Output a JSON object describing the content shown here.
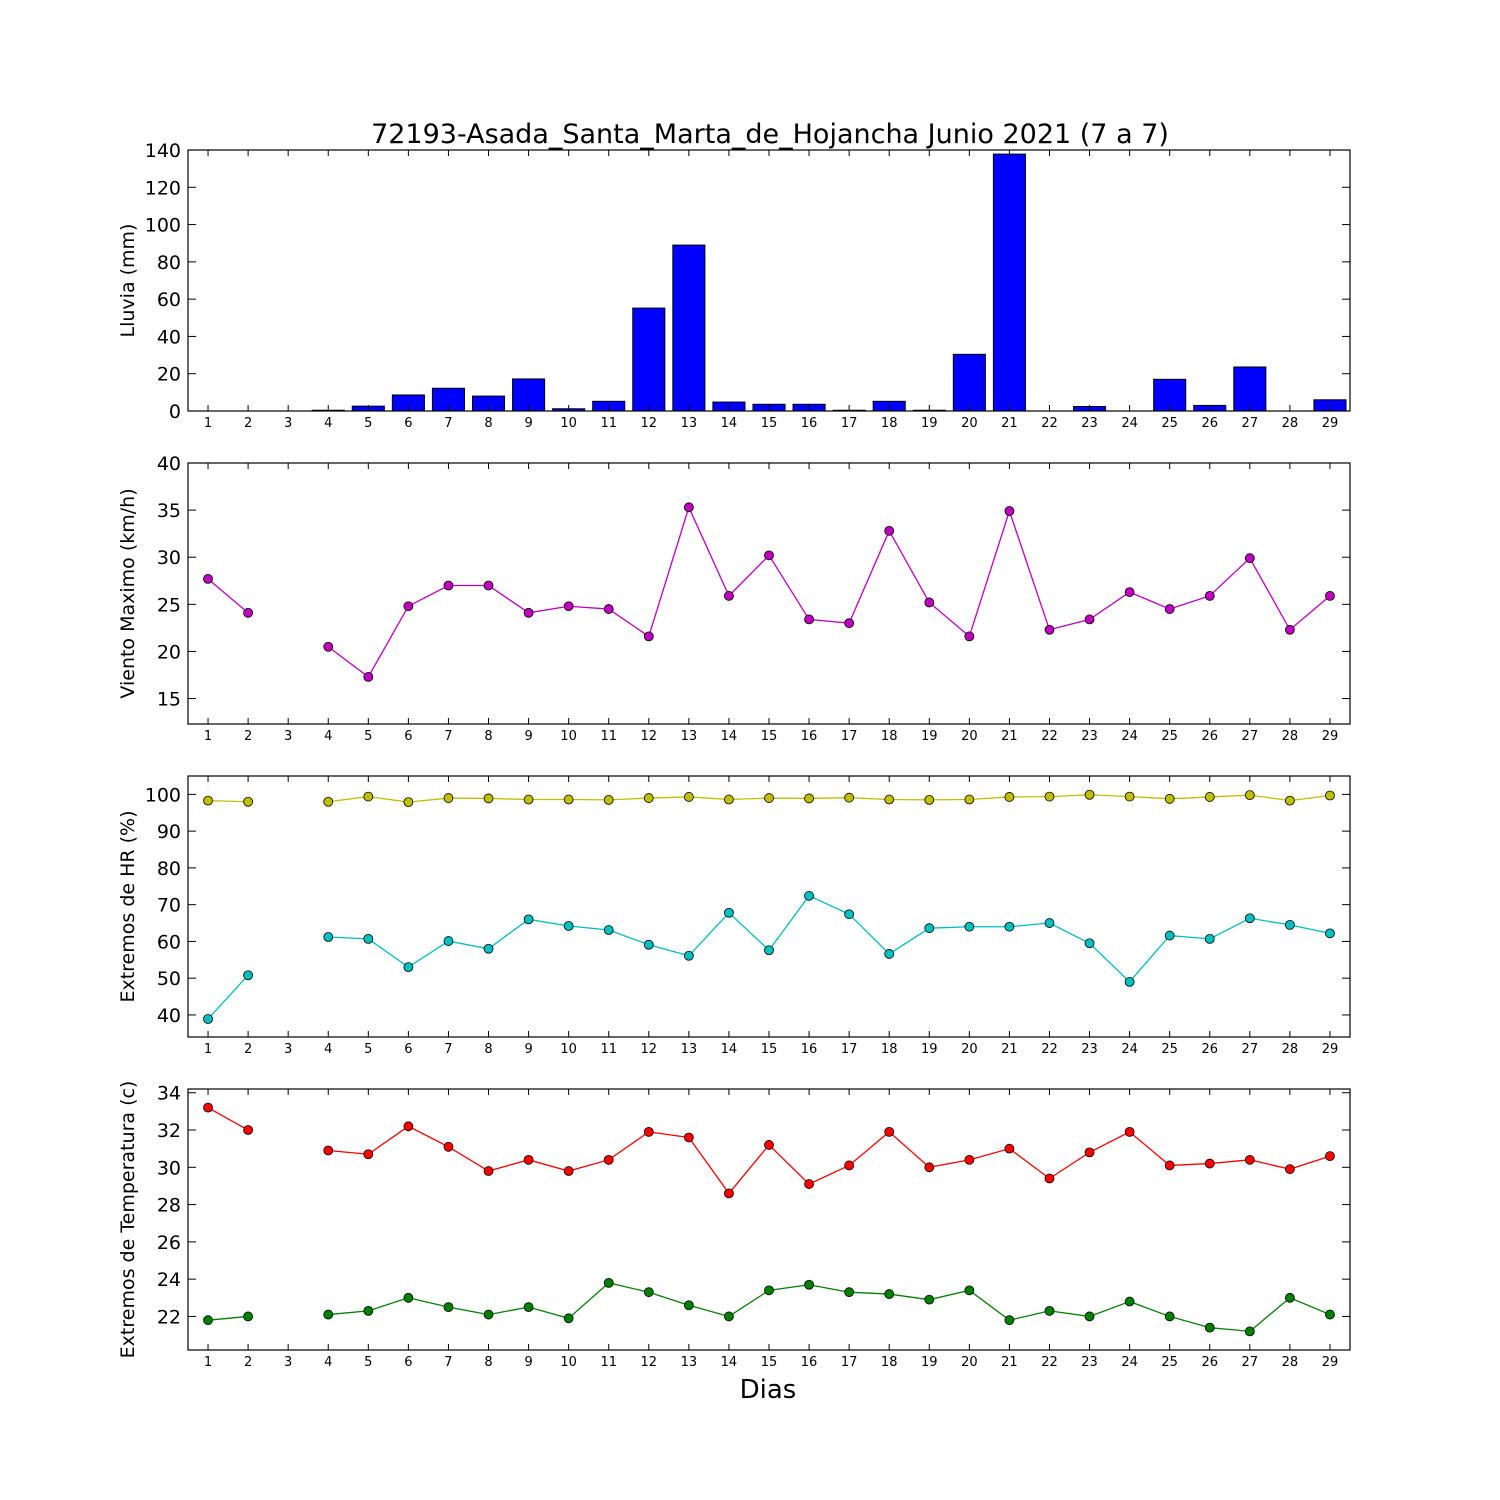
{
  "figure": {
    "title": "72193-Asada_Santa_Marta_de_Hojancha Junio 2021  (7 a 7)",
    "xlabel": "Dias"
  },
  "chart_data": [
    {
      "type": "bar",
      "ylabel": "Lluvia (mm)",
      "ylim": [
        0,
        140
      ],
      "yticks": [
        0,
        20,
        40,
        60,
        80,
        100,
        120,
        140
      ],
      "x": [
        1,
        2,
        3,
        4,
        5,
        6,
        7,
        8,
        9,
        10,
        11,
        12,
        13,
        14,
        15,
        16,
        17,
        18,
        19,
        20,
        21,
        22,
        23,
        24,
        25,
        26,
        27,
        28,
        29
      ],
      "series": [
        {
          "color": "#0000ff",
          "values": [
            0,
            0,
            0,
            0.4,
            2.6,
            8.6,
            12.2,
            8,
            17.2,
            1.2,
            5.2,
            55.2,
            89,
            4.8,
            3.6,
            3.6,
            0.4,
            5.2,
            0.4,
            30.4,
            137.8,
            0,
            2.4,
            0,
            17,
            3,
            23.6,
            0,
            6
          ]
        }
      ],
      "grid": false
    },
    {
      "type": "line",
      "ylabel": "Viento Maximo (km/h)",
      "ylim": [
        12.3,
        40
      ],
      "yticks": [
        15,
        20,
        25,
        30,
        35,
        40
      ],
      "x": [
        1,
        2,
        3,
        4,
        5,
        6,
        7,
        8,
        9,
        10,
        11,
        12,
        13,
        14,
        15,
        16,
        17,
        18,
        19,
        20,
        21,
        22,
        23,
        24,
        25,
        26,
        27,
        28,
        29
      ],
      "series": [
        {
          "color": "#bf00bf",
          "values": [
            27.7,
            24.1,
            null,
            20.5,
            17.3,
            24.8,
            27,
            27,
            24.1,
            24.8,
            24.5,
            21.6,
            35.3,
            25.9,
            30.2,
            23.4,
            23,
            32.8,
            25.2,
            21.6,
            34.9,
            22.3,
            23.4,
            26.3,
            24.5,
            25.9,
            29.9,
            22.3,
            25.9
          ]
        }
      ],
      "grid": false
    },
    {
      "type": "line",
      "ylabel": "Extremos de HR (%)",
      "ylim": [
        34,
        105
      ],
      "yticks": [
        40,
        50,
        60,
        70,
        80,
        90,
        100
      ],
      "x": [
        1,
        2,
        3,
        4,
        5,
        6,
        7,
        8,
        9,
        10,
        11,
        12,
        13,
        14,
        15,
        16,
        17,
        18,
        19,
        20,
        21,
        22,
        23,
        24,
        25,
        26,
        27,
        28,
        29
      ],
      "series": [
        {
          "color": "#bfbf00",
          "values": [
            98.3,
            98,
            null,
            98,
            99.4,
            97.9,
            99,
            98.9,
            98.6,
            98.6,
            98.5,
            99,
            99.3,
            98.6,
            99,
            98.9,
            99.1,
            98.6,
            98.5,
            98.6,
            99.3,
            99.4,
            99.9,
            99.4,
            98.8,
            99.3,
            99.8,
            98.3,
            99.7
          ]
        },
        {
          "color": "#00bfbf",
          "values": [
            38.9,
            50.8,
            null,
            61.2,
            60.7,
            53,
            60.1,
            58,
            66,
            64.2,
            63.1,
            59.1,
            56.1,
            67.8,
            57.6,
            72.4,
            67.4,
            56.6,
            63.6,
            64,
            64,
            65,
            59.5,
            49,
            61.6,
            60.7,
            66.3,
            64.5,
            62.2
          ]
        }
      ],
      "grid": false
    },
    {
      "type": "line",
      "ylabel": "Extremos de Temperatura (c)",
      "ylim": [
        20.2,
        34.2
      ],
      "yticks": [
        22,
        24,
        26,
        28,
        30,
        32,
        34
      ],
      "x": [
        1,
        2,
        3,
        4,
        5,
        6,
        7,
        8,
        9,
        10,
        11,
        12,
        13,
        14,
        15,
        16,
        17,
        18,
        19,
        20,
        21,
        22,
        23,
        24,
        25,
        26,
        27,
        28,
        29
      ],
      "series": [
        {
          "color": "#ff0000",
          "values": [
            33.2,
            32,
            null,
            30.9,
            30.7,
            32.2,
            31.1,
            29.8,
            30.4,
            29.8,
            30.4,
            31.9,
            31.6,
            28.6,
            31.2,
            29.1,
            30.1,
            31.9,
            30,
            30.4,
            31,
            29.4,
            30.8,
            31.9,
            30.1,
            30.2,
            30.4,
            29.9,
            30.6
          ]
        },
        {
          "color": "#008000",
          "values": [
            21.8,
            22,
            null,
            22.1,
            22.3,
            23,
            22.5,
            22.1,
            22.5,
            21.9,
            23.8,
            23.3,
            22.6,
            22,
            23.4,
            23.7,
            23.3,
            23.2,
            22.9,
            23.4,
            21.8,
            22.3,
            22,
            22.8,
            22,
            21.4,
            21.2,
            23,
            22.1
          ]
        }
      ],
      "grid": false
    }
  ]
}
